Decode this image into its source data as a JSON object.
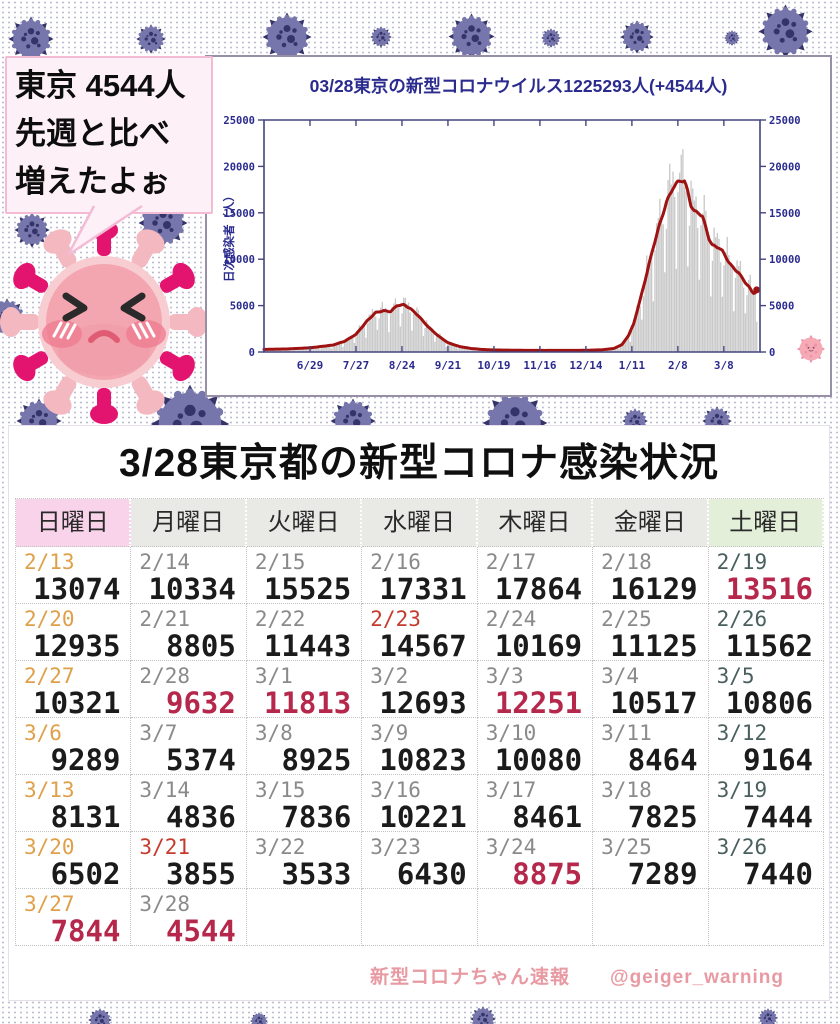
{
  "bubble": {
    "lines": [
      "東京 4544人",
      "先週と比べ",
      "増えたよぉ"
    ]
  },
  "chart_data": {
    "type": "bar+line",
    "title": "03/28東京の新型コロナウイルス1225293人(+4544人)",
    "ylabel": "日次感染者（人）",
    "ylim": [
      0,
      25000
    ],
    "yticks": [
      0,
      5000,
      10000,
      15000,
      20000,
      25000
    ],
    "x_tick_labels": [
      "6/29",
      "7/27",
      "8/24",
      "9/21",
      "10/19",
      "11/16",
      "12/14",
      "1/11",
      "2/8",
      "3/8"
    ],
    "x_tick_days": [
      28,
      56,
      84,
      112,
      140,
      168,
      196,
      224,
      252,
      280
    ],
    "x_total_days": 302,
    "grid": false,
    "legend": "none",
    "bar_series_name": "daily new cases",
    "line_series_name": "7-day average",
    "bar_color": "#c9c9c9",
    "line_color": "#9e1212",
    "axis_color": "#44447e",
    "text_color": "#2b2b8f",
    "avg_line_points": [
      [
        0,
        280
      ],
      [
        14,
        330
      ],
      [
        28,
        450
      ],
      [
        42,
        750
      ],
      [
        49,
        1150
      ],
      [
        56,
        1900
      ],
      [
        63,
        3400
      ],
      [
        68,
        4250
      ],
      [
        73,
        4450
      ],
      [
        77,
        4350
      ],
      [
        81,
        5000
      ],
      [
        85,
        5100
      ],
      [
        89,
        4700
      ],
      [
        94,
        3900
      ],
      [
        100,
        2700
      ],
      [
        106,
        1750
      ],
      [
        112,
        1000
      ],
      [
        119,
        590
      ],
      [
        126,
        380
      ],
      [
        133,
        270
      ],
      [
        140,
        220
      ],
      [
        154,
        185
      ],
      [
        168,
        170
      ],
      [
        182,
        170
      ],
      [
        196,
        185
      ],
      [
        206,
        240
      ],
      [
        213,
        380
      ],
      [
        218,
        800
      ],
      [
        222,
        1800
      ],
      [
        225,
        3000
      ],
      [
        229,
        5600
      ],
      [
        233,
        8400
      ],
      [
        237,
        11300
      ],
      [
        241,
        13800
      ],
      [
        245,
        16100
      ],
      [
        249,
        17700
      ],
      [
        252,
        18300
      ],
      [
        254,
        18500
      ],
      [
        256,
        18400
      ],
      [
        258,
        17300
      ],
      [
        260,
        15800
      ],
      [
        262,
        15150
      ],
      [
        265,
        14950
      ],
      [
        267,
        14600
      ],
      [
        269,
        13400
      ],
      [
        271,
        12200
      ],
      [
        273,
        11500
      ],
      [
        275,
        11350
      ],
      [
        277,
        11250
      ],
      [
        279,
        10900
      ],
      [
        281,
        10300
      ],
      [
        283,
        9700
      ],
      [
        285,
        9200
      ],
      [
        287,
        8850
      ],
      [
        289,
        8550
      ],
      [
        291,
        8000
      ],
      [
        293,
        7500
      ],
      [
        295,
        7100
      ],
      [
        296,
        6800
      ],
      [
        297,
        6500
      ],
      [
        298,
        6350
      ],
      [
        299,
        6400
      ],
      [
        300,
        6700
      ]
    ],
    "bar_weekday_pattern": [
      0.88,
      1.1,
      1.16,
      1.12,
      1.04,
      0.94,
      0.52
    ]
  },
  "table": {
    "title": "3/28東京都の新型コロナ感染状況",
    "headers": [
      "日曜日",
      "月曜日",
      "火曜日",
      "水曜日",
      "木曜日",
      "金曜日",
      "土曜日"
    ],
    "header_colors": {
      "sunday": "#f9d3ea",
      "weekday": "#e9e9e6",
      "saturday": "#e3efd8"
    },
    "date_colors": {
      "sun": "#dfa04a",
      "wd": "#8a8a8a",
      "sat": "#49605e",
      "hol": "#c53b2e"
    },
    "value_colors": {
      "k": "#1b1b1b",
      "r": "#b5284b"
    },
    "rows": [
      [
        {
          "d": "2/13",
          "dc": "sun",
          "v": "13074",
          "vc": "k"
        },
        {
          "d": "2/14",
          "dc": "wd",
          "v": "10334",
          "vc": "k"
        },
        {
          "d": "2/15",
          "dc": "wd",
          "v": "15525",
          "vc": "k"
        },
        {
          "d": "2/16",
          "dc": "wd",
          "v": "17331",
          "vc": "k"
        },
        {
          "d": "2/17",
          "dc": "wd",
          "v": "17864",
          "vc": "k"
        },
        {
          "d": "2/18",
          "dc": "wd",
          "v": "16129",
          "vc": "k"
        },
        {
          "d": "2/19",
          "dc": "sat",
          "v": "13516",
          "vc": "r"
        }
      ],
      [
        {
          "d": "2/20",
          "dc": "sun",
          "v": "12935",
          "vc": "k"
        },
        {
          "d": "2/21",
          "dc": "wd",
          "v": "8805",
          "vc": "k"
        },
        {
          "d": "2/22",
          "dc": "wd",
          "v": "11443",
          "vc": "k"
        },
        {
          "d": "2/23",
          "dc": "hol",
          "v": "14567",
          "vc": "k"
        },
        {
          "d": "2/24",
          "dc": "wd",
          "v": "10169",
          "vc": "k"
        },
        {
          "d": "2/25",
          "dc": "wd",
          "v": "11125",
          "vc": "k"
        },
        {
          "d": "2/26",
          "dc": "sat",
          "v": "11562",
          "vc": "k"
        }
      ],
      [
        {
          "d": "2/27",
          "dc": "sun",
          "v": "10321",
          "vc": "k"
        },
        {
          "d": "2/28",
          "dc": "wd",
          "v": "9632",
          "vc": "r"
        },
        {
          "d": "3/1",
          "dc": "wd",
          "v": "11813",
          "vc": "r"
        },
        {
          "d": "3/2",
          "dc": "wd",
          "v": "12693",
          "vc": "k"
        },
        {
          "d": "3/3",
          "dc": "wd",
          "v": "12251",
          "vc": "r"
        },
        {
          "d": "3/4",
          "dc": "wd",
          "v": "10517",
          "vc": "k"
        },
        {
          "d": "3/5",
          "dc": "sat",
          "v": "10806",
          "vc": "k"
        }
      ],
      [
        {
          "d": "3/6",
          "dc": "sun",
          "v": "9289",
          "vc": "k"
        },
        {
          "d": "3/7",
          "dc": "wd",
          "v": "5374",
          "vc": "k"
        },
        {
          "d": "3/8",
          "dc": "wd",
          "v": "8925",
          "vc": "k"
        },
        {
          "d": "3/9",
          "dc": "wd",
          "v": "10823",
          "vc": "k"
        },
        {
          "d": "3/10",
          "dc": "wd",
          "v": "10080",
          "vc": "k"
        },
        {
          "d": "3/11",
          "dc": "wd",
          "v": "8464",
          "vc": "k"
        },
        {
          "d": "3/12",
          "dc": "sat",
          "v": "9164",
          "vc": "k"
        }
      ],
      [
        {
          "d": "3/13",
          "dc": "sun",
          "v": "8131",
          "vc": "k"
        },
        {
          "d": "3/14",
          "dc": "wd",
          "v": "4836",
          "vc": "k"
        },
        {
          "d": "3/15",
          "dc": "wd",
          "v": "7836",
          "vc": "k"
        },
        {
          "d": "3/16",
          "dc": "wd",
          "v": "10221",
          "vc": "k"
        },
        {
          "d": "3/17",
          "dc": "wd",
          "v": "8461",
          "vc": "k"
        },
        {
          "d": "3/18",
          "dc": "wd",
          "v": "7825",
          "vc": "k"
        },
        {
          "d": "3/19",
          "dc": "sat",
          "v": "7444",
          "vc": "k"
        }
      ],
      [
        {
          "d": "3/20",
          "dc": "sun",
          "v": "6502",
          "vc": "k"
        },
        {
          "d": "3/21",
          "dc": "hol",
          "v": "3855",
          "vc": "k"
        },
        {
          "d": "3/22",
          "dc": "wd",
          "v": "3533",
          "vc": "k"
        },
        {
          "d": "3/23",
          "dc": "wd",
          "v": "6430",
          "vc": "k"
        },
        {
          "d": "3/24",
          "dc": "wd",
          "v": "8875",
          "vc": "r"
        },
        {
          "d": "3/25",
          "dc": "wd",
          "v": "7289",
          "vc": "k"
        },
        {
          "d": "3/26",
          "dc": "sat",
          "v": "7440",
          "vc": "k"
        }
      ],
      [
        {
          "d": "3/27",
          "dc": "sun",
          "v": "7844",
          "vc": "r"
        },
        {
          "d": "3/28",
          "dc": "wd",
          "v": "4544",
          "vc": "r"
        },
        null,
        null,
        null,
        null,
        null
      ]
    ]
  },
  "footer": {
    "credit": "新型コロナちゃん速報　　@geiger_warning"
  },
  "icons": {
    "virus-icon": "navy coronavirus ball with dark spots and spikes (decorative)",
    "pink-virus-mascot-icon": "pink coronavirus mascot with squinting eyes and frown",
    "small-pink-virus-icon": "tiny smiling pink coronavirus"
  }
}
